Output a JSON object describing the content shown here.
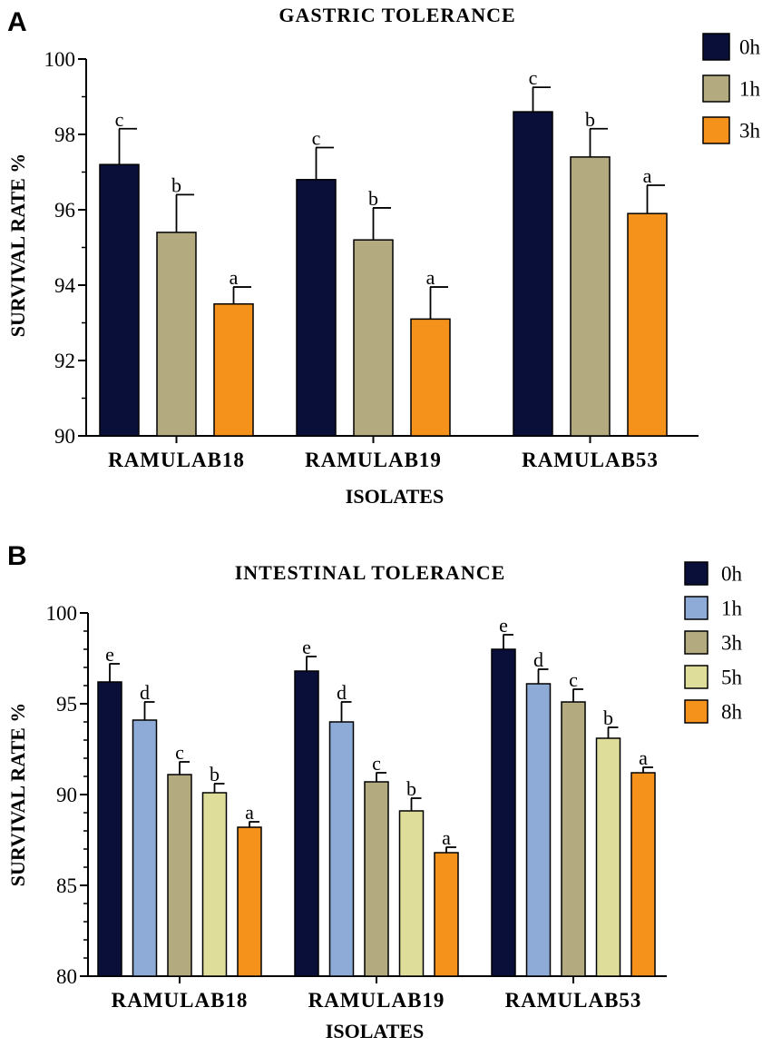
{
  "chart_data": [
    {
      "panel": "A",
      "type": "bar",
      "title": "GASTRIC TOLERANCE",
      "xlabel": "ISOLATES",
      "ylabel": "SURVIVAL RATE %",
      "ylim": [
        90,
        100
      ],
      "yticks": [
        90,
        92,
        94,
        96,
        98,
        100
      ],
      "categories": [
        "RAMULAB18",
        "RAMULAB19",
        "RAMULAB53"
      ],
      "series": [
        {
          "name": "0h",
          "color": "#0a0f3a",
          "values": [
            97.2,
            96.8,
            98.6
          ],
          "errors": [
            0.95,
            0.85,
            0.65
          ],
          "letters": [
            "c",
            "c",
            "c"
          ]
        },
        {
          "name": "1h",
          "color": "#b3ab7f",
          "values": [
            95.4,
            95.2,
            97.4
          ],
          "errors": [
            1.0,
            0.85,
            0.75
          ],
          "letters": [
            "b",
            "b",
            "b"
          ]
        },
        {
          "name": "3h",
          "color": "#f5921b",
          "values": [
            93.5,
            93.1,
            95.9
          ],
          "errors": [
            0.45,
            0.85,
            0.75
          ],
          "letters": [
            "a",
            "a",
            "a"
          ]
        }
      ]
    },
    {
      "panel": "B",
      "type": "bar",
      "title": "INTESTINAL TOLERANCE",
      "xlabel": "ISOLATES",
      "ylabel": "SURVIVAL RATE %",
      "ylim": [
        80,
        100
      ],
      "yticks": [
        80,
        85,
        90,
        95,
        100
      ],
      "categories": [
        "RAMULAB18",
        "RAMULAB19",
        "RAMULAB53"
      ],
      "series": [
        {
          "name": "0h",
          "color": "#0a0f3a",
          "values": [
            96.2,
            96.8,
            98.0
          ],
          "errors": [
            1.0,
            0.8,
            0.8
          ],
          "letters": [
            "e",
            "e",
            "e"
          ]
        },
        {
          "name": "1h",
          "color": "#8eaad6",
          "values": [
            94.1,
            94.0,
            96.1
          ],
          "errors": [
            1.0,
            1.1,
            0.8
          ],
          "letters": [
            "d",
            "d",
            "d"
          ]
        },
        {
          "name": "3h",
          "color": "#b3ab7f",
          "values": [
            91.1,
            90.7,
            95.1
          ],
          "errors": [
            0.7,
            0.5,
            0.7
          ],
          "letters": [
            "c",
            "c",
            "c"
          ]
        },
        {
          "name": "5h",
          "color": "#dede9a",
          "values": [
            90.1,
            89.1,
            93.1
          ],
          "errors": [
            0.5,
            0.7,
            0.6
          ],
          "letters": [
            "b",
            "b",
            "b"
          ]
        },
        {
          "name": "8h",
          "color": "#f5921b",
          "values": [
            88.2,
            86.8,
            91.2
          ],
          "errors": [
            0.3,
            0.3,
            0.3
          ],
          "letters": [
            "a",
            "a",
            "a"
          ]
        }
      ]
    }
  ]
}
